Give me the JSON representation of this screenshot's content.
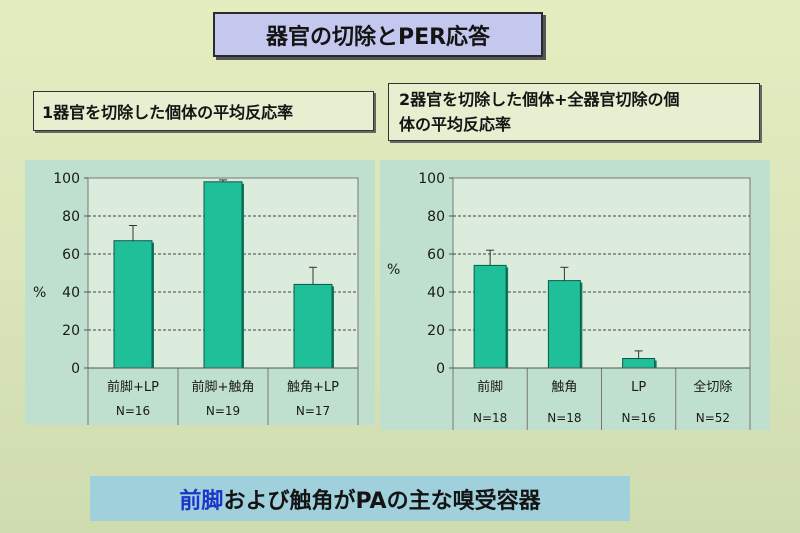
{
  "slide": {
    "title": "器官の切除とPER応答",
    "subtitle_left": "1器官を切除した個体の平均反応率",
    "subtitle_right_line1": "2器官を切除した個体+全器官切除の個",
    "subtitle_right_line2": "体の平均反応率",
    "conclusion_highlight": "前脚",
    "conclusion_rest": "および触角がPAの主な嗅受容器"
  },
  "colors": {
    "bar": "#1fbf9a",
    "bar_dark": "#0f7a60",
    "plot_bg": "#dcecdc",
    "panel_bg": "#bfe0cf",
    "highlight": "#1a36c8"
  },
  "chart_data": [
    {
      "type": "bar",
      "ylabel": "%",
      "ylim": [
        0,
        100
      ],
      "yticks": [
        0,
        20,
        40,
        60,
        80,
        100
      ],
      "grid": true,
      "categories": [
        "前脚+LP",
        "前脚+触角",
        "触角+LP"
      ],
      "n_labels": [
        "N=16",
        "N=19",
        "N=17"
      ],
      "values": [
        67,
        98,
        44
      ],
      "errors": [
        8,
        1,
        9
      ]
    },
    {
      "type": "bar",
      "ylabel": "%",
      "ylim": [
        0,
        100
      ],
      "yticks": [
        0,
        20,
        40,
        60,
        80,
        100
      ],
      "grid": true,
      "categories": [
        "前脚",
        "触角",
        "LP",
        "全切除"
      ],
      "n_labels": [
        "N=18",
        "N=18",
        "N=16",
        "N=52"
      ],
      "values": [
        54,
        46,
        5,
        0
      ],
      "errors": [
        8,
        7,
        4,
        0
      ]
    }
  ]
}
